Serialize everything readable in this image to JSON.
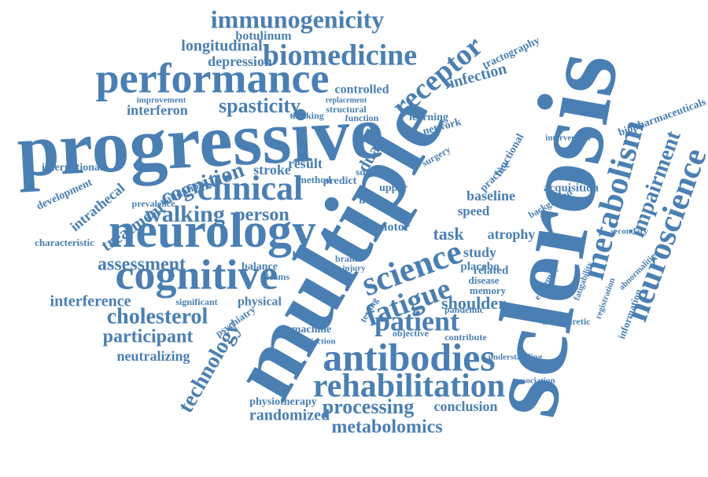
{
  "words": [
    "progressive",
    "multiple",
    "sclerosis",
    "neurology",
    "cognitive",
    "performance",
    "clinical",
    "antibodies",
    "rehabilitation",
    "science",
    "fatigue",
    "patient",
    "metabolism",
    "neuroscience",
    "receptor",
    "biomedicine",
    "immunogenicity",
    "impairment",
    "cholesterol",
    "walking",
    "cognition",
    "spasticity",
    "technology",
    "assessment",
    "participant",
    "processing",
    "metabolomics",
    "randomized",
    "conclusion",
    "shoulder",
    "person",
    "interference",
    "neutralizing",
    "treatment",
    "intrathecal",
    "development",
    "international",
    "characteristic",
    "interferon",
    "longitudinal",
    "depression",
    "botulinum",
    "controlled",
    "infection",
    "tractography",
    "biopharmaceuticals",
    "acquisition",
    "baseline",
    "speed",
    "atrophy",
    "task",
    "study",
    "placebo",
    "memory",
    "disease",
    "related",
    "physical",
    "stroke",
    "result",
    "hemiparetic",
    "intervention",
    "improvement",
    "validation",
    "prevalence",
    "machine",
    "injection",
    "physiotherapy",
    "psychiatry",
    "learning",
    "network",
    "functional",
    "motor",
    "measure",
    "information",
    "registration",
    "objective",
    "contribute",
    "understanding",
    "association",
    "secondary",
    "fatigability",
    "abnormalities",
    "balance",
    "significant",
    "upper",
    "liver",
    "predict",
    "sdmt",
    "method",
    "dual",
    "structural",
    "function",
    "thinking",
    "replacement",
    "practice",
    "background",
    "pandemic",
    "extremity",
    "bicams",
    "brain",
    "injury",
    "testing",
    "surgery"
  ]
}
